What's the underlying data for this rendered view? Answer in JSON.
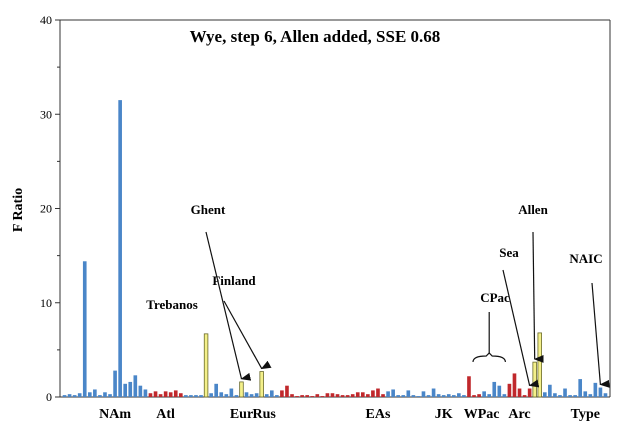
{
  "chart_data": {
    "type": "bar",
    "title": "Wye, step 6, Allen added, SSE 0.68",
    "ylabel": "F Ratio",
    "xlabel": "",
    "ylim": [
      0,
      40
    ],
    "yticks": [
      0,
      10,
      20,
      30,
      40
    ],
    "grid": false,
    "colors": {
      "blue": "#4a86c8",
      "red": "#c0282c",
      "yellow": "#f4f08a",
      "yellow_edge": "#6a6a2a",
      "axis": "#333333"
    },
    "bars": [
      {
        "c": "b",
        "v": 0.2
      },
      {
        "c": "b",
        "v": 0.3
      },
      {
        "c": "b",
        "v": 0.2
      },
      {
        "c": "b",
        "v": 0.4
      },
      {
        "c": "b",
        "v": 14.4
      },
      {
        "c": "b",
        "v": 0.5
      },
      {
        "c": "b",
        "v": 0.8
      },
      {
        "c": "b",
        "v": 0.2
      },
      {
        "c": "b",
        "v": 0.5
      },
      {
        "c": "b",
        "v": 0.3
      },
      {
        "c": "b",
        "v": 2.8
      },
      {
        "c": "b",
        "v": 31.5
      },
      {
        "c": "b",
        "v": 1.4
      },
      {
        "c": "b",
        "v": 1.6
      },
      {
        "c": "b",
        "v": 2.3
      },
      {
        "c": "b",
        "v": 1.2
      },
      {
        "c": "b",
        "v": 0.8
      },
      {
        "c": "r",
        "v": 0.4
      },
      {
        "c": "r",
        "v": 0.6
      },
      {
        "c": "r",
        "v": 0.3
      },
      {
        "c": "r",
        "v": 0.6
      },
      {
        "c": "r",
        "v": 0.5
      },
      {
        "c": "r",
        "v": 0.7
      },
      {
        "c": "r",
        "v": 0.4
      },
      {
        "c": "b",
        "v": 0.2
      },
      {
        "c": "b",
        "v": 0.2
      },
      {
        "c": "b",
        "v": 0.2
      },
      {
        "c": "b",
        "v": 0.2
      },
      {
        "c": "y",
        "v": 6.7
      },
      {
        "c": "b",
        "v": 0.4
      },
      {
        "c": "b",
        "v": 1.4
      },
      {
        "c": "b",
        "v": 0.5
      },
      {
        "c": "b",
        "v": 0.3
      },
      {
        "c": "b",
        "v": 0.9
      },
      {
        "c": "b",
        "v": 0.2
      },
      {
        "c": "y",
        "v": 1.6
      },
      {
        "c": "b",
        "v": 0.5
      },
      {
        "c": "b",
        "v": 0.3
      },
      {
        "c": "b",
        "v": 0.4
      },
      {
        "c": "y",
        "v": 2.7
      },
      {
        "c": "b",
        "v": 0.3
      },
      {
        "c": "b",
        "v": 0.7
      },
      {
        "c": "b",
        "v": 0.2
      },
      {
        "c": "r",
        "v": 0.7
      },
      {
        "c": "r",
        "v": 1.2
      },
      {
        "c": "r",
        "v": 0.3
      },
      {
        "c": "r",
        "v": 0.1
      },
      {
        "c": "r",
        "v": 0.2
      },
      {
        "c": "r",
        "v": 0.2
      },
      {
        "c": "r",
        "v": 0.1
      },
      {
        "c": "r",
        "v": 0.3
      },
      {
        "c": "r",
        "v": 0.1
      },
      {
        "c": "r",
        "v": 0.4
      },
      {
        "c": "r",
        "v": 0.4
      },
      {
        "c": "r",
        "v": 0.3
      },
      {
        "c": "r",
        "v": 0.2
      },
      {
        "c": "r",
        "v": 0.2
      },
      {
        "c": "r",
        "v": 0.3
      },
      {
        "c": "r",
        "v": 0.5
      },
      {
        "c": "r",
        "v": 0.5
      },
      {
        "c": "r",
        "v": 0.3
      },
      {
        "c": "r",
        "v": 0.7
      },
      {
        "c": "r",
        "v": 0.9
      },
      {
        "c": "r",
        "v": 0.3
      },
      {
        "c": "b",
        "v": 0.6
      },
      {
        "c": "b",
        "v": 0.8
      },
      {
        "c": "b",
        "v": 0.2
      },
      {
        "c": "b",
        "v": 0.2
      },
      {
        "c": "b",
        "v": 0.7
      },
      {
        "c": "b",
        "v": 0.2
      },
      {
        "c": "b",
        "v": 0.1
      },
      {
        "c": "b",
        "v": 0.6
      },
      {
        "c": "b",
        "v": 0.2
      },
      {
        "c": "b",
        "v": 0.9
      },
      {
        "c": "b",
        "v": 0.3
      },
      {
        "c": "b",
        "v": 0.2
      },
      {
        "c": "b",
        "v": 0.3
      },
      {
        "c": "b",
        "v": 0.2
      },
      {
        "c": "b",
        "v": 0.4
      },
      {
        "c": "b",
        "v": 0.2
      },
      {
        "c": "r",
        "v": 2.2
      },
      {
        "c": "r",
        "v": 0.2
      },
      {
        "c": "r",
        "v": 0.3
      },
      {
        "c": "b",
        "v": 0.6
      },
      {
        "c": "b",
        "v": 0.3
      },
      {
        "c": "b",
        "v": 1.6
      },
      {
        "c": "b",
        "v": 1.2
      },
      {
        "c": "b",
        "v": 0.3
      },
      {
        "c": "r",
        "v": 1.4
      },
      {
        "c": "r",
        "v": 2.5
      },
      {
        "c": "r",
        "v": 0.9
      },
      {
        "c": "r",
        "v": 0.2
      },
      {
        "c": "r",
        "v": 0.9
      },
      {
        "c": "y",
        "v": 3.7
      },
      {
        "c": "y",
        "v": 6.8
      },
      {
        "c": "b",
        "v": 0.5
      },
      {
        "c": "b",
        "v": 1.3
      },
      {
        "c": "b",
        "v": 0.4
      },
      {
        "c": "b",
        "v": 0.2
      },
      {
        "c": "b",
        "v": 0.9
      },
      {
        "c": "b",
        "v": 0.2
      },
      {
        "c": "b",
        "v": 0.2
      },
      {
        "c": "b",
        "v": 1.9
      },
      {
        "c": "b",
        "v": 0.6
      },
      {
        "c": "b",
        "v": 0.3
      },
      {
        "c": "b",
        "v": 1.5
      },
      {
        "c": "b",
        "v": 1.0
      },
      {
        "c": "b",
        "v": 0.4
      }
    ],
    "groups": [
      {
        "label": "NAm",
        "at": 10
      },
      {
        "label": "Atl",
        "at": 20
      },
      {
        "label": "Eur",
        "at": 35
      },
      {
        "label": "Rus",
        "at": 39.5
      },
      {
        "label": "EAs",
        "at": 62
      },
      {
        "label": "JK",
        "at": 75
      },
      {
        "label": "WPac",
        "at": 82.5
      },
      {
        "label": "Arc",
        "at": 90
      },
      {
        "label": "Type",
        "at": 103
      }
    ],
    "annotations": [
      {
        "label": "Ghent",
        "bar": 35,
        "style": "arrow"
      },
      {
        "label": "Finland",
        "bar": 39,
        "style": "arrow"
      },
      {
        "label": "Trebanos",
        "bar": 28,
        "style": "text"
      },
      {
        "label": "CPac",
        "bar": 84,
        "style": "bracket"
      },
      {
        "label": "Sea",
        "bar": 92,
        "style": "arrow"
      },
      {
        "label": "Allen",
        "bar": 93,
        "style": "arrow"
      },
      {
        "label": "NAIC",
        "bar": 106,
        "style": "arrow"
      }
    ]
  }
}
